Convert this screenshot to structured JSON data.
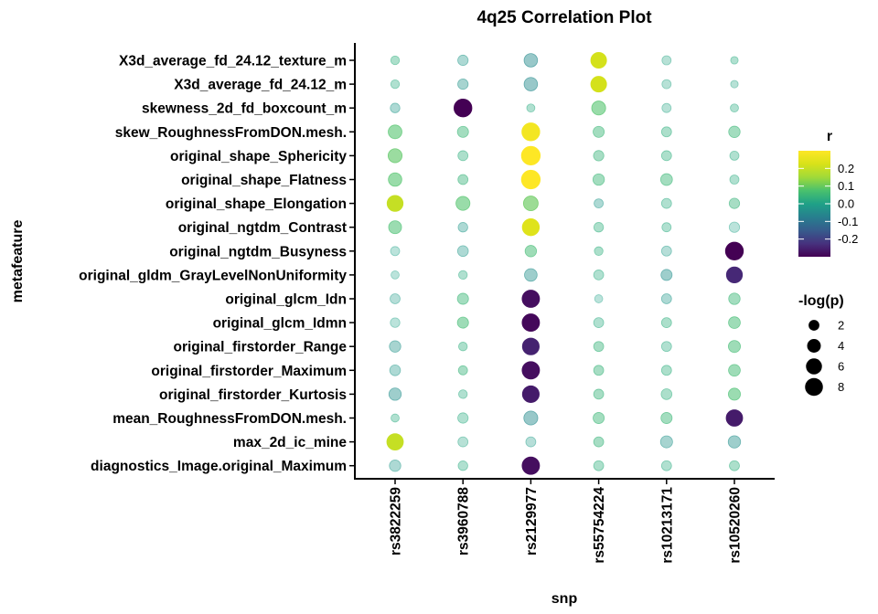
{
  "chart_data": {
    "type": "scatter",
    "title": "4q25 Correlation Plot",
    "xlabel": "snp",
    "ylabel": "metafeature",
    "x_categories": [
      "rs3822259",
      "rs3960788",
      "rs2129977",
      "rs55754224",
      "rs10213171",
      "rs10520260"
    ],
    "y_categories": [
      "X3d_average_fd_24.12_texture_m",
      "X3d_average_fd_24.12_m",
      "skewness_2d_fd_boxcount_m",
      "skew_RoughnessFromDON.mesh.",
      "original_shape_Sphericity",
      "original_shape_Flatness",
      "original_shape_Elongation",
      "original_ngtdm_Contrast",
      "original_ngtdm_Busyness",
      "original_gldm_GrayLevelNonUniformity",
      "original_glcm_Idn",
      "original_glcm_Idmn",
      "original_firstorder_Range",
      "original_firstorder_Maximum",
      "original_firstorder_Kurtosis",
      "mean_RoughnessFromDON.mesh.",
      "max_2d_ic_mine",
      "diagnostics_Image.original_Maximum"
    ],
    "r_values": [
      [
        0.03,
        -0.02,
        -0.05,
        0.22,
        0.01,
        0.02
      ],
      [
        0.02,
        -0.03,
        -0.05,
        0.22,
        0.01,
        0.01
      ],
      [
        -0.02,
        -0.3,
        0.02,
        0.08,
        0.01,
        0.02
      ],
      [
        0.08,
        0.05,
        0.28,
        0.05,
        0.03,
        0.05
      ],
      [
        0.09,
        0.03,
        0.3,
        0.04,
        0.03,
        0.02
      ],
      [
        0.08,
        0.04,
        0.3,
        0.05,
        0.05,
        0.02
      ],
      [
        0.2,
        0.08,
        0.1,
        -0.02,
        0.02,
        0.04
      ],
      [
        0.07,
        -0.02,
        0.24,
        0.03,
        0.02,
        0.0
      ],
      [
        0.0,
        -0.02,
        0.06,
        0.03,
        -0.01,
        -0.3
      ],
      [
        0.0,
        0.02,
        -0.04,
        0.02,
        -0.04,
        -0.24
      ],
      [
        -0.01,
        0.05,
        -0.28,
        0.0,
        -0.02,
        0.05
      ],
      [
        0.0,
        0.06,
        -0.29,
        0.02,
        0.03,
        0.06
      ],
      [
        -0.03,
        0.03,
        -0.25,
        0.04,
        0.02,
        0.06
      ],
      [
        -0.02,
        0.04,
        -0.28,
        0.04,
        0.03,
        0.06
      ],
      [
        -0.04,
        0.02,
        -0.26,
        0.04,
        0.03,
        0.07
      ],
      [
        0.02,
        0.02,
        -0.05,
        0.05,
        0.05,
        -0.26
      ],
      [
        0.2,
        0.01,
        -0.01,
        0.04,
        -0.03,
        -0.04
      ],
      [
        -0.02,
        0.02,
        -0.28,
        0.03,
        0.02,
        0.03
      ]
    ],
    "neglogp_values": [
      [
        1.0,
        1.8,
        3.8,
        5.8,
        1.2,
        0.6
      ],
      [
        1.0,
        1.8,
        3.8,
        5.8,
        1.2,
        0.6
      ],
      [
        1.4,
        8.0,
        0.8,
        4.2,
        1.2,
        0.8
      ],
      [
        4.0,
        2.2,
        8.0,
        2.2,
        1.6,
        2.4
      ],
      [
        4.2,
        1.6,
        9.0,
        1.8,
        1.6,
        1.2
      ],
      [
        3.8,
        1.6,
        9.0,
        2.4,
        2.6,
        1.2
      ],
      [
        6.0,
        4.2,
        4.8,
        1.2,
        1.6,
        1.8
      ],
      [
        3.4,
        1.4,
        7.0,
        1.4,
        1.2,
        1.8
      ],
      [
        1.2,
        2.0,
        2.4,
        1.0,
        1.6,
        8.0
      ],
      [
        0.8,
        1.0,
        3.2,
        1.6,
        2.2,
        6.0
      ],
      [
        1.6,
        2.2,
        7.5,
        0.8,
        1.6,
        2.4
      ],
      [
        1.4,
        2.2,
        7.5,
        1.6,
        1.6,
        2.6
      ],
      [
        2.4,
        1.0,
        6.8,
        1.6,
        1.6,
        2.8
      ],
      [
        2.0,
        1.2,
        7.5,
        1.6,
        1.6,
        2.6
      ],
      [
        3.0,
        1.0,
        6.8,
        1.6,
        2.0,
        2.8
      ],
      [
        0.8,
        1.8,
        4.2,
        2.2,
        2.2,
        6.5
      ],
      [
        6.5,
        1.6,
        1.6,
        1.6,
        2.8,
        3.0
      ],
      [
        2.4,
        1.4,
        7.5,
        1.6,
        1.6,
        1.6
      ]
    ],
    "color_legend": {
      "title": "r",
      "ticks": [
        0.2,
        0.1,
        0.0,
        -0.1,
        -0.2
      ],
      "tick_labels": [
        "0.2",
        "0.1",
        "0.0",
        "-0.1",
        "-0.2"
      ],
      "range": [
        -0.3,
        0.3
      ],
      "colormap": "viridis"
    },
    "size_legend": {
      "title": "-log(p)",
      "values": [
        2,
        4,
        6,
        8
      ],
      "labels": [
        "2",
        "4",
        "6",
        "8"
      ]
    },
    "point_opacity_low": 0.3,
    "grid": false,
    "legend_position": "right"
  }
}
